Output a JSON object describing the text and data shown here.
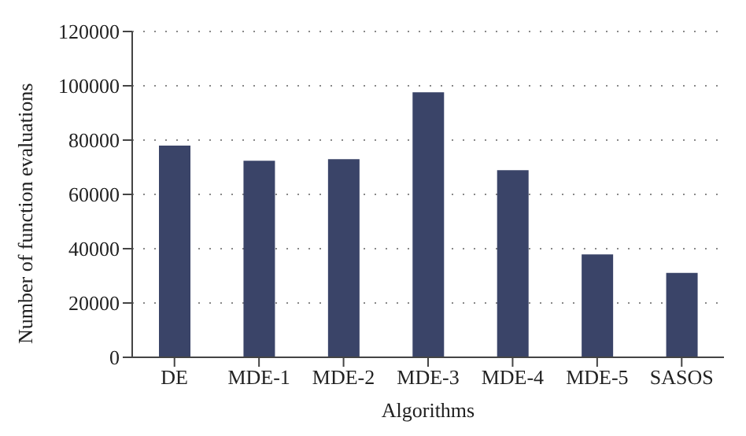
{
  "chart_data": {
    "type": "bar",
    "xlabel": "Algorithms",
    "ylabel": "Number of function evaluations",
    "categories": [
      "DE",
      "MDE-1",
      "MDE-2",
      "MDE-3",
      "MDE-4",
      "MDE-5",
      "SASOS"
    ],
    "values": [
      78000,
      72400,
      73000,
      97600,
      68900,
      37900,
      31100
    ],
    "color": "#3a4468",
    "ylim": [
      0,
      120000
    ],
    "yticks": [
      0,
      20000,
      40000,
      60000,
      80000,
      100000,
      120000
    ],
    "grid": "y",
    "legend": false
  }
}
